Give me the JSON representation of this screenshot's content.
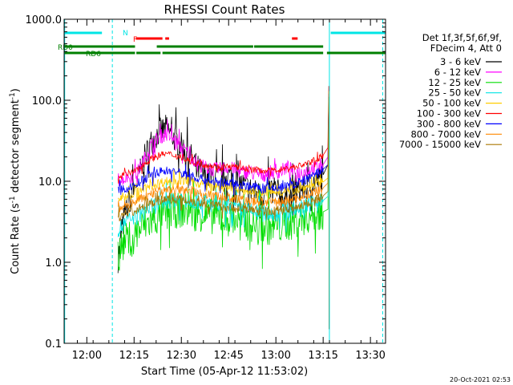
{
  "chart_data": {
    "type": "line",
    "title": "RHESSI Count Rates",
    "xlabel": "Start Time (05-Apr-12 11:53:02)",
    "ylabel_main": "Count Rate (s",
    "ylabel_sup1": "-1",
    "ylabel_mid": " detector segment",
    "ylabel_sup2": "-1",
    "ylabel_end": ")",
    "y_scale": "log",
    "ylim": [
      0.1,
      1000
    ],
    "xlim_minutes": [
      11.88,
      13.58
    ],
    "x_tick_labels": [
      "12:00",
      "12:15",
      "12:30",
      "12:45",
      "13:00",
      "13:15",
      "13:30"
    ],
    "x_tick_minutes": [
      12.0,
      12.25,
      12.5,
      12.75,
      13.0,
      13.25,
      13.5
    ],
    "y_tick_labels": [
      "0.1",
      "1.0",
      "10.0",
      "100.0",
      "1000.0"
    ],
    "y_tick_values": [
      0.1,
      1,
      10,
      100,
      1000
    ],
    "legend_header": [
      "Det 1f,3f,5f,6f,9f,",
      "FDecim 4, Att 0"
    ],
    "legend_placement": "right",
    "timestamp": "20-Oct-2021 02:53",
    "flags": {
      "N_label": "N",
      "F_label": "F",
      "RD0_label": "RD0",
      "RD6_label": "RD6",
      "night_color": "#00e5e5",
      "flare_color": "#ff0000",
      "decim_color": "#008000",
      "night_intervals": [
        [
          11.883,
          12.08
        ],
        [
          13.29,
          13.58
        ]
      ],
      "flare_intervals": [
        [
          12.26,
          12.4
        ],
        [
          12.415,
          12.435
        ],
        [
          13.085,
          13.115
        ]
      ],
      "rd0_intervals": [
        [
          11.883,
          12.255
        ],
        [
          12.37,
          12.88
        ],
        [
          12.885,
          13.25
        ]
      ],
      "rd6_intervals": [
        [
          11.883,
          12.255
        ],
        [
          12.262,
          12.39
        ],
        [
          12.4,
          13.25
        ],
        [
          13.27,
          13.58
        ]
      ],
      "night_lines": [
        11.883,
        12.135,
        13.283,
        13.565
      ]
    },
    "series": [
      {
        "name": "3 - 6 keV",
        "color": "#000000",
        "x": [
          12.165,
          12.2,
          12.26,
          12.3,
          12.34,
          12.38,
          12.42,
          12.46,
          12.5,
          12.54,
          12.58,
          12.62,
          12.66,
          12.7,
          12.74,
          12.78,
          12.82,
          12.86,
          12.9,
          12.94,
          12.98,
          13.02,
          13.06,
          13.1,
          13.14,
          13.18,
          13.22,
          13.25,
          13.275,
          13.28
        ],
        "y": [
          1.1,
          4.0,
          9,
          18,
          30,
          40,
          45,
          35,
          27,
          22,
          15,
          12,
          11,
          11,
          12,
          11,
          9,
          8,
          7,
          7,
          8,
          7,
          6,
          7,
          8,
          9,
          10,
          12,
          16,
          100
        ]
      },
      {
        "name": "6 - 12 keV",
        "color": "#ff00ff",
        "x": [
          12.165,
          12.2,
          12.26,
          12.3,
          12.34,
          12.38,
          12.42,
          12.46,
          12.5,
          12.54,
          12.58,
          12.62,
          12.66,
          12.7,
          12.74,
          12.78,
          12.82,
          12.86,
          12.9,
          12.94,
          12.98,
          13.02,
          13.06,
          13.1,
          13.14,
          13.18,
          13.22,
          13.25,
          13.275,
          13.28
        ],
        "y": [
          10.5,
          11,
          12,
          18,
          28,
          35,
          38,
          33,
          26,
          22,
          17,
          15,
          14,
          14,
          15,
          14,
          13,
          13,
          12,
          12,
          13,
          13,
          15,
          13,
          13,
          14,
          15,
          16,
          20,
          110
        ]
      },
      {
        "name": "12 - 25 keV",
        "color": "#00dd00",
        "x": [
          12.165,
          12.2,
          12.26,
          12.3,
          12.34,
          12.38,
          12.42,
          12.46,
          12.5,
          12.54,
          12.58,
          12.62,
          12.66,
          12.7,
          12.74,
          12.78,
          12.82,
          12.86,
          12.9,
          12.94,
          12.98,
          13.02,
          13.06,
          13.1,
          13.14,
          13.18,
          13.22,
          13.25,
          13.275,
          13.28
        ],
        "y": [
          1.3,
          1.8,
          2.3,
          2.8,
          3.2,
          3.6,
          4.0,
          4.3,
          4.4,
          4.3,
          4.1,
          3.9,
          3.7,
          3.6,
          3.5,
          3.4,
          3.2,
          3.0,
          2.8,
          2.7,
          2.7,
          2.8,
          3.0,
          3.2,
          3.5,
          3.8,
          4.0,
          4.2,
          4.5,
          90
        ]
      },
      {
        "name": "25 - 50 keV",
        "color": "#00e5e5",
        "x": [
          12.165,
          12.2,
          12.26,
          12.3,
          12.34,
          12.38,
          12.42,
          12.46,
          12.5,
          12.54,
          12.58,
          12.62,
          12.66,
          12.7,
          12.74,
          12.78,
          12.82,
          12.86,
          12.9,
          12.94,
          12.98,
          13.02,
          13.06,
          13.1,
          13.14,
          13.18,
          13.22,
          13.25,
          13.275,
          13.28
        ],
        "y": [
          2.5,
          3.0,
          3.6,
          4.2,
          4.8,
          5.3,
          5.7,
          6.0,
          6.1,
          6.0,
          5.8,
          5.5,
          5.2,
          5.0,
          4.9,
          4.7,
          4.5,
          4.3,
          4.1,
          4.0,
          4.0,
          4.1,
          4.3,
          4.5,
          4.8,
          5.2,
          5.5,
          5.8,
          6.5,
          95
        ]
      },
      {
        "name": "50 - 100 keV",
        "color": "#ffcc00",
        "x": [
          12.165,
          12.2,
          12.26,
          12.3,
          12.34,
          12.38,
          12.42,
          12.46,
          12.5,
          12.54,
          12.58,
          12.62,
          12.66,
          12.7,
          12.74,
          12.78,
          12.82,
          12.86,
          12.9,
          12.94,
          12.98,
          13.02,
          13.06,
          13.1,
          13.14,
          13.18,
          13.22,
          13.25,
          13.275,
          13.28
        ],
        "y": [
          6.0,
          6.5,
          7.2,
          8.0,
          8.8,
          9.5,
          10,
          10.3,
          10.2,
          10,
          9.6,
          9.2,
          8.8,
          8.5,
          8.3,
          8.0,
          7.8,
          7.6,
          7.4,
          7.3,
          7.3,
          7.4,
          7.6,
          7.9,
          8.3,
          8.8,
          9.3,
          9.8,
          11,
          100
        ]
      },
      {
        "name": "100 - 300 keV",
        "color": "#ff0000",
        "x": [
          12.165,
          12.2,
          12.26,
          12.3,
          12.34,
          12.38,
          12.42,
          12.46,
          12.5,
          12.54,
          12.58,
          12.62,
          12.66,
          12.7,
          12.74,
          12.78,
          12.82,
          12.86,
          12.9,
          12.94,
          12.98,
          13.02,
          13.06,
          13.1,
          13.14,
          13.18,
          13.22,
          13.25,
          13.275,
          13.28
        ],
        "y": [
          11.5,
          12,
          13.5,
          16,
          19,
          21,
          22,
          21,
          19.5,
          18,
          17,
          16,
          15.5,
          15,
          15.2,
          15,
          14.5,
          14,
          13.8,
          13.5,
          13.6,
          14,
          14.5,
          15,
          16,
          17,
          19,
          21,
          26,
          150
        ]
      },
      {
        "name": "300 - 800 keV",
        "color": "#0000ff",
        "x": [
          12.165,
          12.2,
          12.26,
          12.3,
          12.34,
          12.38,
          12.42,
          12.46,
          12.5,
          12.54,
          12.58,
          12.62,
          12.66,
          12.7,
          12.74,
          12.78,
          12.82,
          12.86,
          12.9,
          12.94,
          12.98,
          13.02,
          13.06,
          13.1,
          13.14,
          13.18,
          13.22,
          13.25,
          13.275,
          13.28
        ],
        "y": [
          7.5,
          8.0,
          9.0,
          10.5,
          12,
          13,
          13.5,
          13.2,
          12.5,
          11.8,
          11,
          10.5,
          10,
          9.7,
          9.5,
          9.3,
          9.0,
          8.7,
          8.4,
          8.2,
          8.2,
          8.4,
          8.7,
          9.2,
          10,
          11,
          12.5,
          14,
          16,
          120
        ]
      },
      {
        "name": "800 - 7000 keV",
        "color": "#ff8800",
        "x": [
          12.165,
          12.2,
          12.26,
          12.3,
          12.34,
          12.38,
          12.42,
          12.46,
          12.5,
          12.54,
          12.58,
          12.62,
          12.66,
          12.7,
          12.74,
          12.78,
          12.82,
          12.86,
          12.9,
          12.94,
          12.98,
          13.02,
          13.06,
          13.1,
          13.14,
          13.18,
          13.22,
          13.25,
          13.275,
          13.28
        ],
        "y": [
          4.5,
          5.0,
          5.6,
          6.3,
          7.0,
          7.5,
          7.8,
          7.9,
          7.8,
          7.6,
          7.3,
          7.0,
          6.7,
          6.5,
          6.3,
          6.1,
          5.9,
          5.7,
          5.6,
          5.5,
          5.5,
          5.6,
          5.8,
          6.1,
          6.5,
          7.0,
          7.6,
          8.3,
          9.5,
          130
        ]
      },
      {
        "name": "7000 - 15000 keV",
        "color": "#aa7700",
        "x": [
          12.165,
          12.2,
          12.26,
          12.3,
          12.34,
          12.38,
          12.42,
          12.46,
          12.5,
          12.54,
          12.58,
          12.62,
          12.66,
          12.7,
          12.74,
          12.78,
          12.82,
          12.86,
          12.9,
          12.94,
          12.98,
          13.02,
          13.06,
          13.1,
          13.14,
          13.18,
          13.22,
          13.25,
          13.275,
          13.28
        ],
        "y": [
          3.5,
          4.0,
          4.4,
          4.9,
          5.4,
          5.8,
          6.0,
          6.1,
          6.0,
          5.8,
          5.6,
          5.3,
          5.1,
          4.9,
          4.8,
          4.7,
          4.6,
          4.5,
          4.4,
          4.3,
          4.3,
          4.4,
          4.6,
          4.8,
          5.1,
          5.5,
          6.0,
          6.6,
          7.5,
          110
        ]
      }
    ]
  }
}
